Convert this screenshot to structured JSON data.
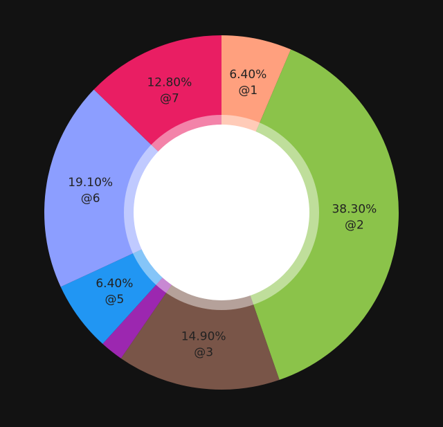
{
  "chart_data": {
    "type": "donut",
    "categories": [
      "@1",
      "@2",
      "@3",
      null,
      "@5",
      "@6",
      "@7"
    ],
    "values": [
      6.4,
      38.3,
      14.9,
      2.1,
      6.4,
      19.1,
      12.8
    ],
    "value_labels": [
      "6.40%",
      "38.30%",
      "14.90%",
      null,
      "6.40%",
      "19.10%",
      "12.80%"
    ],
    "colors": [
      "#ffa07e",
      "#8bc34a",
      "#795548",
      "#9c27b0",
      "#2196f3",
      "#8c9eff",
      "#e91e63"
    ]
  }
}
